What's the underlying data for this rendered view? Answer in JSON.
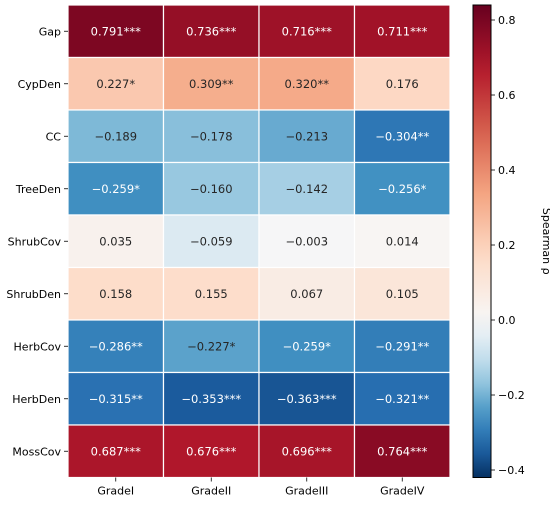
{
  "chart_data": {
    "type": "heatmap",
    "rows": [
      "Gap",
      "CypDen",
      "CC",
      "TreeDen",
      "ShrubCov",
      "ShrubDen",
      "HerbCov",
      "HerbDen",
      "MossCov"
    ],
    "columns": [
      "GradeI",
      "GradeII",
      "GradeIII",
      "GradeIV"
    ],
    "values": [
      [
        0.791,
        0.736,
        0.716,
        0.711
      ],
      [
        0.227,
        0.309,
        0.32,
        0.176
      ],
      [
        -0.189,
        -0.178,
        -0.213,
        -0.304
      ],
      [
        -0.259,
        -0.16,
        -0.142,
        -0.256
      ],
      [
        0.035,
        -0.059,
        -0.003,
        0.014
      ],
      [
        0.158,
        0.155,
        0.067,
        0.105
      ],
      [
        -0.286,
        -0.227,
        -0.259,
        -0.291
      ],
      [
        -0.315,
        -0.353,
        -0.363,
        -0.321
      ],
      [
        0.687,
        0.676,
        0.696,
        0.764
      ]
    ],
    "labels": [
      [
        "0.791***",
        "0.736***",
        "0.716***",
        "0.711***"
      ],
      [
        "0.227*",
        "0.309**",
        "0.320**",
        "0.176"
      ],
      [
        "−0.189",
        "−0.178",
        "−0.213",
        "−0.304**"
      ],
      [
        "−0.259*",
        "−0.160",
        "−0.142",
        "−0.256*"
      ],
      [
        "0.035",
        "−0.059",
        "−0.003",
        "0.014"
      ],
      [
        "0.158",
        "0.155",
        "0.067",
        "0.105"
      ],
      [
        "−0.286**",
        "−0.227*",
        "−0.259*",
        "−0.291**"
      ],
      [
        "−0.315**",
        "−0.353***",
        "−0.363***",
        "−0.321**"
      ],
      [
        "0.687***",
        "0.676***",
        "0.696***",
        "0.764***"
      ]
    ],
    "colorbar": {
      "label": "Spearman ρ",
      "range": [
        -0.42,
        0.84
      ],
      "ticks": [
        0.8,
        0.6,
        0.4,
        0.2,
        0.0,
        -0.2,
        -0.4
      ],
      "tick_labels": [
        "0.8",
        "0.6",
        "0.4",
        "0.2",
        "0.0",
        "−0.2",
        "−0.4"
      ],
      "colormap": "RdBu_r",
      "scale": "two-slope, centered at 0"
    }
  }
}
